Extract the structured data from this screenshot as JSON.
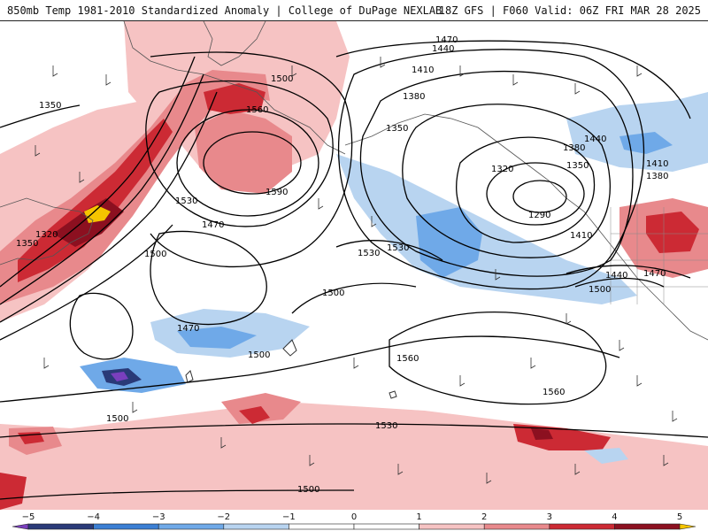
{
  "header": {
    "left_title": "850mb Temp 1981-2010 Standardized Anomaly | College of DuPage NEXLAB",
    "right_title": "18Z GFS | F060 Valid: 06Z FRI MAR 28 2025"
  },
  "colorbar": {
    "ticks": [
      {
        "value": -5,
        "label": "−5"
      },
      {
        "value": -4,
        "label": "−4"
      },
      {
        "value": -3,
        "label": "−3"
      },
      {
        "value": -2,
        "label": "−2"
      },
      {
        "value": -1,
        "label": "−1"
      },
      {
        "value": 0,
        "label": "0"
      },
      {
        "value": 1,
        "label": "1"
      },
      {
        "value": 2,
        "label": "2"
      },
      {
        "value": 3,
        "label": "3"
      },
      {
        "value": 4,
        "label": "4"
      },
      {
        "value": 5,
        "label": "5"
      }
    ],
    "colors": [
      {
        "key": "below-5",
        "hex": "#7a3fbd"
      },
      {
        "key": "m5-m4",
        "hex": "#2a3a78"
      },
      {
        "key": "m4-m3",
        "hex": "#3b7fd4"
      },
      {
        "key": "m3-m2",
        "hex": "#6fa9e8"
      },
      {
        "key": "m2-m1",
        "hex": "#b8d4f0"
      },
      {
        "key": "m1-0",
        "hex": "#ffffff"
      },
      {
        "key": "0-1",
        "hex": "#ffffff"
      },
      {
        "key": "1-2",
        "hex": "#f6c3c3"
      },
      {
        "key": "2-3",
        "hex": "#e8898c"
      },
      {
        "key": "3-4",
        "hex": "#cc2a34"
      },
      {
        "key": "4-5",
        "hex": "#8c1020"
      },
      {
        "key": "above-5",
        "hex": "#f5c400"
      }
    ]
  },
  "contour_labels": [
    "1470",
    "1440",
    "1410",
    "1380",
    "1350",
    "1320",
    "1290",
    "1500",
    "1560",
    "1590",
    "1530",
    "1470",
    "1500",
    "1350",
    "1320",
    "1500",
    "1530",
    "1500",
    "1470",
    "1500",
    "1560",
    "1560",
    "1530",
    "1530",
    "1500",
    "1440",
    "1470",
    "1410",
    "1380",
    "1440",
    "1350",
    "1410",
    "1380",
    "1350",
    "1500"
  ]
}
